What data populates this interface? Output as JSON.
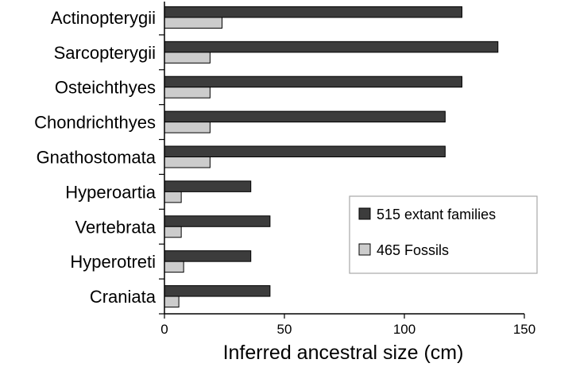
{
  "chart_data": {
    "type": "bar",
    "orientation": "horizontal",
    "categories": [
      "Actinopterygii",
      "Sarcopterygii",
      "Osteichthyes",
      "Chondrichthyes",
      "Gnathostomata",
      "Hyperoartia",
      "Vertebrata",
      "Hyperotreti",
      "Craniata"
    ],
    "series": [
      {
        "name": "515 extant families",
        "color": "#3c3c3c",
        "values": [
          124,
          139,
          124,
          117,
          117,
          36,
          44,
          36,
          44
        ]
      },
      {
        "name": "465 Fossils",
        "color": "#cccccc",
        "values": [
          24,
          19,
          19,
          19,
          19,
          7,
          7,
          8,
          6
        ]
      }
    ],
    "xlabel": "Inferred ancestral size (cm)",
    "xlim": [
      0,
      150
    ],
    "xticks": [
      "0",
      "50",
      "100",
      "150"
    ],
    "grid": false,
    "legend_position": "lower-right"
  }
}
